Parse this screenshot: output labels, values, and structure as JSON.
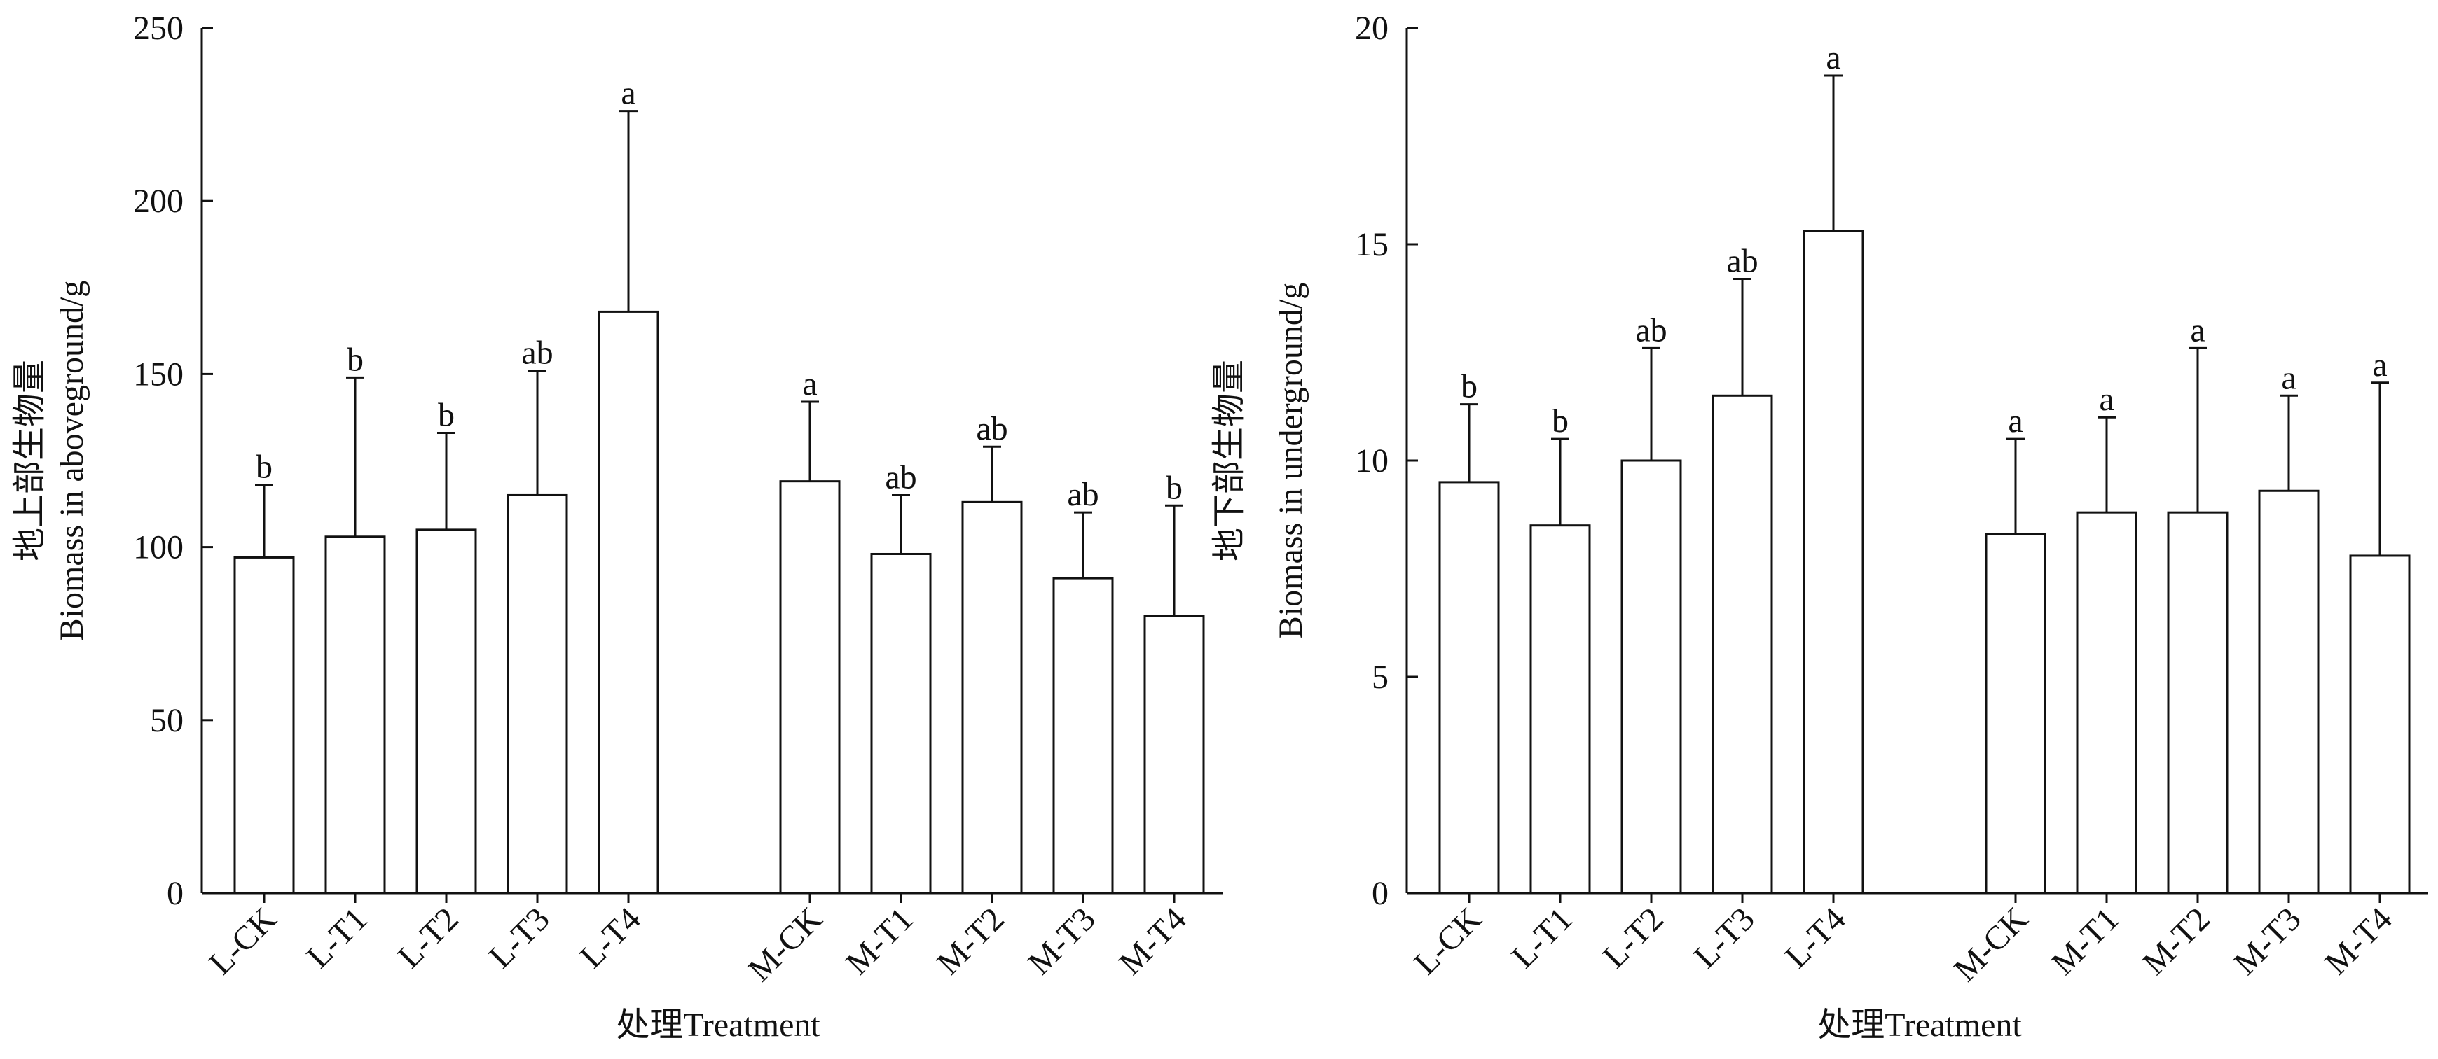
{
  "chart_data": [
    {
      "type": "bar",
      "ylabel_cn": "地上部生物量",
      "ylabel_en": "Biomass in aboveground/g",
      "xlabel": "处理Treatment",
      "ylim": [
        0,
        250
      ],
      "yticks": [
        0,
        50,
        100,
        150,
        200,
        250
      ],
      "groups": [
        {
          "categories": [
            "L-CK",
            "L-T1",
            "L-T2",
            "L-T3",
            "L-T4"
          ],
          "values": [
            97,
            103,
            105,
            115,
            168
          ],
          "error_upper": [
            118,
            149,
            133,
            151,
            226
          ],
          "letters": [
            "b",
            "b",
            "b",
            "ab",
            "a"
          ]
        },
        {
          "categories": [
            "M-CK",
            "M-T1",
            "M-T2",
            "M-T3",
            "M-T4"
          ],
          "values": [
            119,
            98,
            113,
            91,
            80
          ],
          "error_upper": [
            142,
            115,
            129,
            110,
            112
          ],
          "letters": [
            "a",
            "ab",
            "ab",
            "ab",
            "b"
          ]
        }
      ]
    },
    {
      "type": "bar",
      "ylabel_cn": "地下部生物量",
      "ylabel_en": "Biomass in underground/g",
      "xlabel": "处理Treatment",
      "ylim": [
        0,
        20
      ],
      "yticks": [
        0,
        5,
        10,
        15,
        20
      ],
      "groups": [
        {
          "categories": [
            "L-CK",
            "L-T1",
            "L-T2",
            "L-T3",
            "L-T4"
          ],
          "values": [
            9.5,
            8.5,
            10.0,
            11.5,
            15.3
          ],
          "error_upper": [
            11.3,
            10.5,
            12.6,
            14.2,
            18.9
          ],
          "letters": [
            "b",
            "b",
            "ab",
            "ab",
            "a"
          ]
        },
        {
          "categories": [
            "M-CK",
            "M-T1",
            "M-T2",
            "M-T3",
            "M-T4"
          ],
          "values": [
            8.3,
            8.8,
            8.8,
            9.3,
            7.8
          ],
          "error_upper": [
            10.5,
            11.0,
            12.6,
            11.5,
            11.8
          ],
          "letters": [
            "a",
            "a",
            "a",
            "a",
            "a"
          ]
        }
      ]
    }
  ]
}
